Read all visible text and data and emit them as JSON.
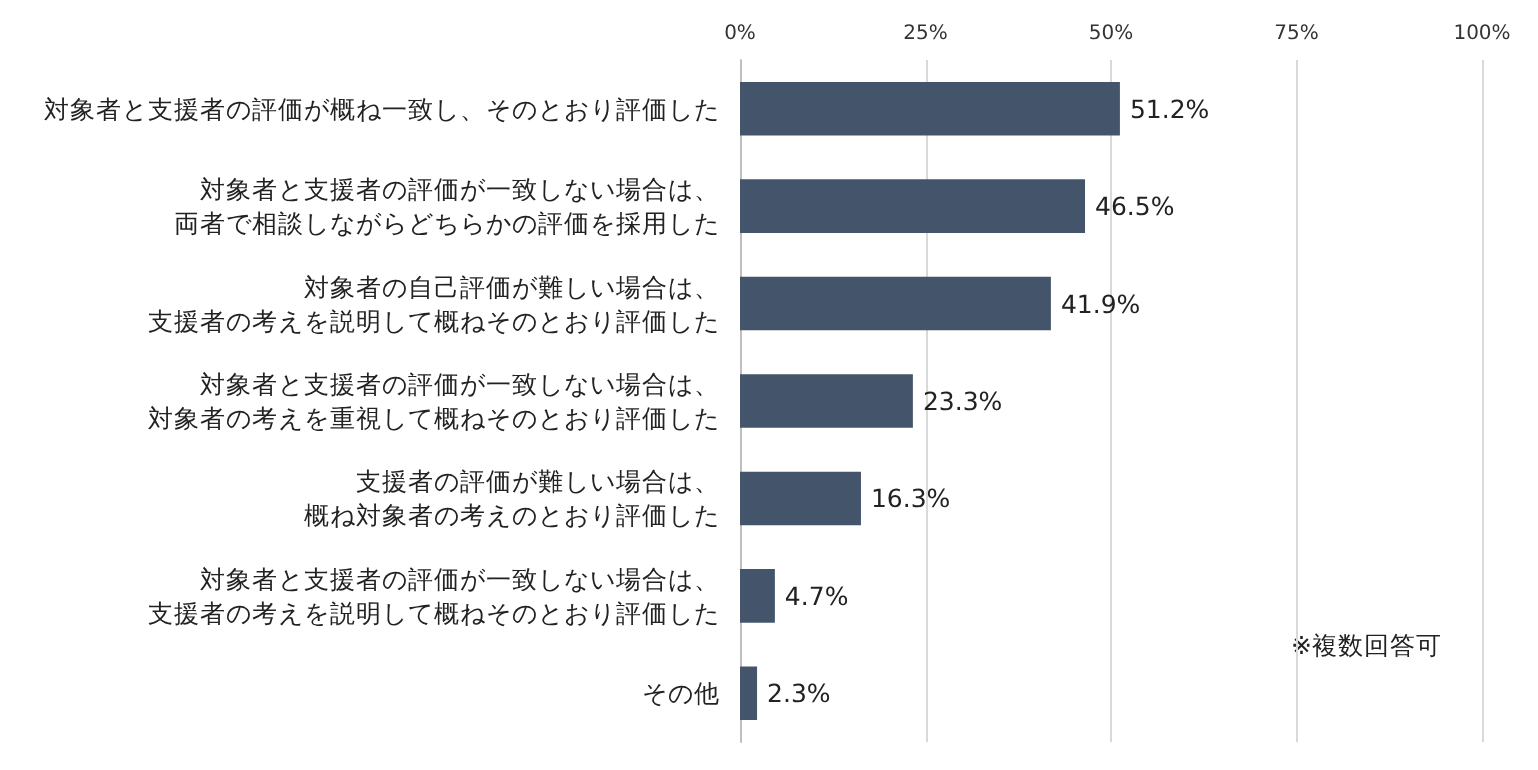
{
  "chart_data": {
    "type": "bar",
    "orientation": "horizontal",
    "categories": [
      "対象者と支援者の評価が概ね一致し、そのとおり評価した",
      "対象者と支援者の評価が一致しない場合は、両者で相談しながらどちらかの評価を採用した",
      "対象者の自己評価が難しい場合は、支援者の考えを説明して概ねそのとおり評価した",
      "対象者と支援者の評価が一致しない場合は、対象者の考えを重視して概ねそのとおり評価した",
      "支援者の評価が難しい場合は、概ね対象者の考えのとおり評価した",
      "対象者と支援者の評価が一致しない場合は、支援者の考えを説明して概ねそのとおり評価した",
      "その他"
    ],
    "values": [
      51.2,
      46.5,
      41.9,
      23.3,
      16.3,
      4.7,
      2.3
    ],
    "value_labels": [
      "51.2%",
      "46.5%",
      "41.9%",
      "23.3%",
      "16.3%",
      "4.7%",
      "2.3%"
    ],
    "color": "#44546a",
    "xlim": [
      0,
      100
    ],
    "xticks": [
      {
        "value": 0,
        "label": "0%"
      },
      {
        "value": 25,
        "label": "25%"
      },
      {
        "value": 50,
        "label": "50%"
      },
      {
        "value": 75,
        "label": "75%"
      },
      {
        "value": 100,
        "label": "100%"
      }
    ],
    "grid": "x",
    "annotations": [
      "※複数回答可"
    ]
  }
}
